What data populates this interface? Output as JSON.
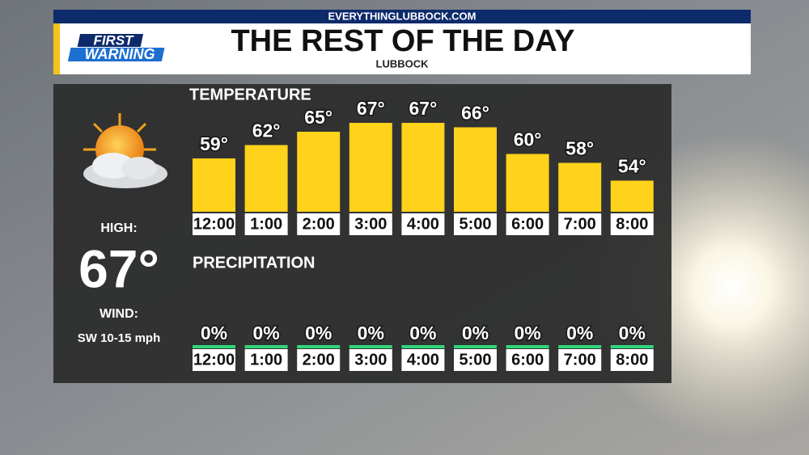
{
  "header": {
    "site": "EVERYTHINGLUBBOCK.COM",
    "logo_top": "FIRST",
    "logo_bottom": "WARNING",
    "title": "THE REST OF THE DAY",
    "subtitle": "LUBBOCK"
  },
  "sidebar": {
    "high_label": "HIGH:",
    "high": "67°",
    "wind_label": "WIND:",
    "wind": "SW 10-15 mph"
  },
  "chart_data": [
    {
      "type": "bar",
      "title": "TEMPERATURE",
      "categories": [
        "12:00",
        "1:00",
        "2:00",
        "3:00",
        "4:00",
        "5:00",
        "6:00",
        "7:00",
        "8:00"
      ],
      "values": [
        59,
        62,
        65,
        67,
        67,
        66,
        60,
        58,
        54
      ],
      "value_labels": [
        "59°",
        "62°",
        "65°",
        "67°",
        "67°",
        "66°",
        "60°",
        "58°",
        "54°"
      ],
      "color": "#ffd21c",
      "ylim": [
        47,
        67
      ]
    },
    {
      "type": "bar",
      "title": "PRECIPITATION",
      "categories": [
        "12:00",
        "1:00",
        "2:00",
        "3:00",
        "4:00",
        "5:00",
        "6:00",
        "7:00",
        "8:00"
      ],
      "values": [
        0,
        0,
        0,
        0,
        0,
        0,
        0,
        0,
        0
      ],
      "value_labels": [
        "0%",
        "0%",
        "0%",
        "0%",
        "0%",
        "0%",
        "0%",
        "0%",
        "0%"
      ],
      "color": "#2fd67a",
      "ylim": [
        0,
        100
      ]
    }
  ]
}
